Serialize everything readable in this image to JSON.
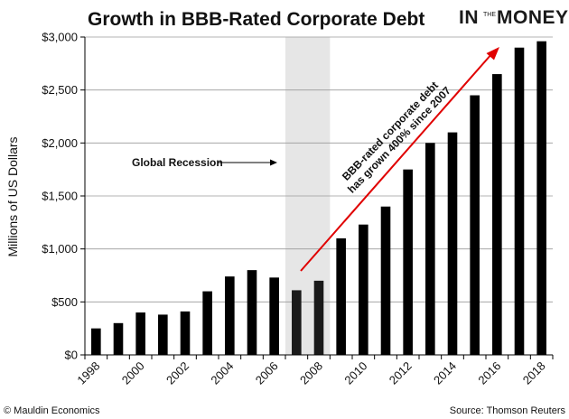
{
  "logo": {
    "prefix": "IN",
    "middle": "THE",
    "suffix": "MONEY"
  },
  "footer": {
    "copyright": "© Mauldin Economics",
    "source": "Source: Thomson Reuters"
  },
  "chart_data": {
    "type": "bar",
    "title": "Growth in BBB-Rated Corporate Debt",
    "ylabel": "Millions of US Dollars",
    "ylim": [
      0,
      3000
    ],
    "yticks": [
      0,
      500,
      1000,
      1500,
      2000,
      2500,
      3000
    ],
    "ytick_labels": [
      "$0",
      "$500",
      "$1,000",
      "$1,500",
      "$2,000",
      "$2,500",
      "$3,000"
    ],
    "categories": [
      "1998",
      "1999",
      "2000",
      "2001",
      "2002",
      "2003",
      "2004",
      "2005",
      "2006",
      "2007",
      "2008",
      "2009",
      "2010",
      "2011",
      "2012",
      "2013",
      "2014",
      "2015",
      "2016",
      "2017",
      "2018"
    ],
    "xtick_labels": [
      "1998",
      "2000",
      "2002",
      "2004",
      "2006",
      "2008",
      "2010",
      "2012",
      "2014",
      "2016",
      "2018"
    ],
    "values": [
      250,
      300,
      400,
      380,
      410,
      600,
      740,
      800,
      730,
      610,
      700,
      1100,
      1230,
      1400,
      1750,
      2000,
      2100,
      2450,
      2650,
      2900,
      2960
    ],
    "grid": true,
    "recession_shade": [
      "2007",
      "2008"
    ],
    "colors": {
      "bar": "#000000",
      "recession_bar": "#1a1a1a",
      "shade": "#e6e6e6",
      "grid": "#9a9a9a",
      "growth_arrow": "#e00000"
    },
    "annotations": {
      "recession": "Global Recession",
      "growth_line1": "BBB-rated corporate debt",
      "growth_line2": "has grown 400% since 2007"
    }
  }
}
